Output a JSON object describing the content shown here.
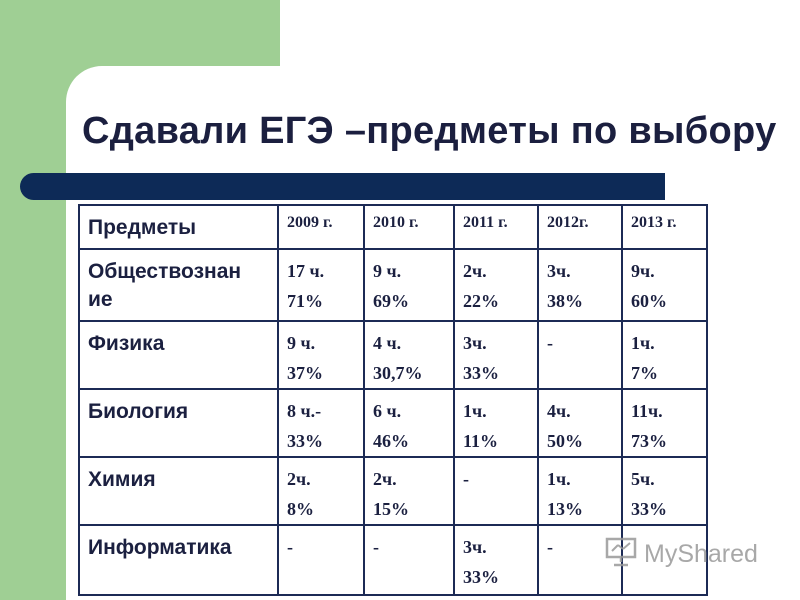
{
  "slide": {
    "title": "Сдавали ЕГЭ –предметы по выбору"
  },
  "table": {
    "header": {
      "subject": "Предметы",
      "years": [
        "2009 г.",
        "2010 г.",
        "2011 г.",
        "2012г.",
        "2013 г."
      ]
    },
    "rows": [
      {
        "subject": "Обществознан ие",
        "cells": [
          [
            "17 ч.",
            "71%"
          ],
          [
            "9 ч.",
            "69%"
          ],
          [
            "2ч.",
            "22%"
          ],
          [
            "3ч.",
            "38%"
          ],
          [
            "9ч.",
            "60%"
          ]
        ]
      },
      {
        "subject": "Физика",
        "cells": [
          [
            "9 ч.",
            "37%"
          ],
          [
            "4 ч.",
            "30,7%"
          ],
          [
            "3ч.",
            "33%"
          ],
          [
            "-",
            ""
          ],
          [
            "1ч.",
            "7%"
          ]
        ]
      },
      {
        "subject": "Биология",
        "cells": [
          [
            "8 ч.-",
            "33%"
          ],
          [
            "6 ч.",
            "46%"
          ],
          [
            "1ч.",
            "11%"
          ],
          [
            "4ч.",
            "50%"
          ],
          [
            "11ч.",
            "73%"
          ]
        ]
      },
      {
        "subject": "Химия",
        "cells": [
          [
            "2ч.",
            "8%"
          ],
          [
            "2ч.",
            "15%"
          ],
          [
            "-",
            ""
          ],
          [
            "1ч.",
            "13%"
          ],
          [
            "5ч.",
            "33%"
          ]
        ]
      },
      {
        "subject": "Информатика",
        "cells": [
          [
            "-",
            ""
          ],
          [
            "-",
            ""
          ],
          [
            "3ч.",
            "33%"
          ],
          [
            "-",
            ""
          ],
          [
            "",
            ""
          ]
        ]
      }
    ]
  },
  "watermark": {
    "text": "MyShared",
    "icon": "presentation-board-icon"
  },
  "colors": {
    "green": "#9fcf94",
    "navy_bar": "#0d2a57",
    "text": "#1b2040"
  }
}
